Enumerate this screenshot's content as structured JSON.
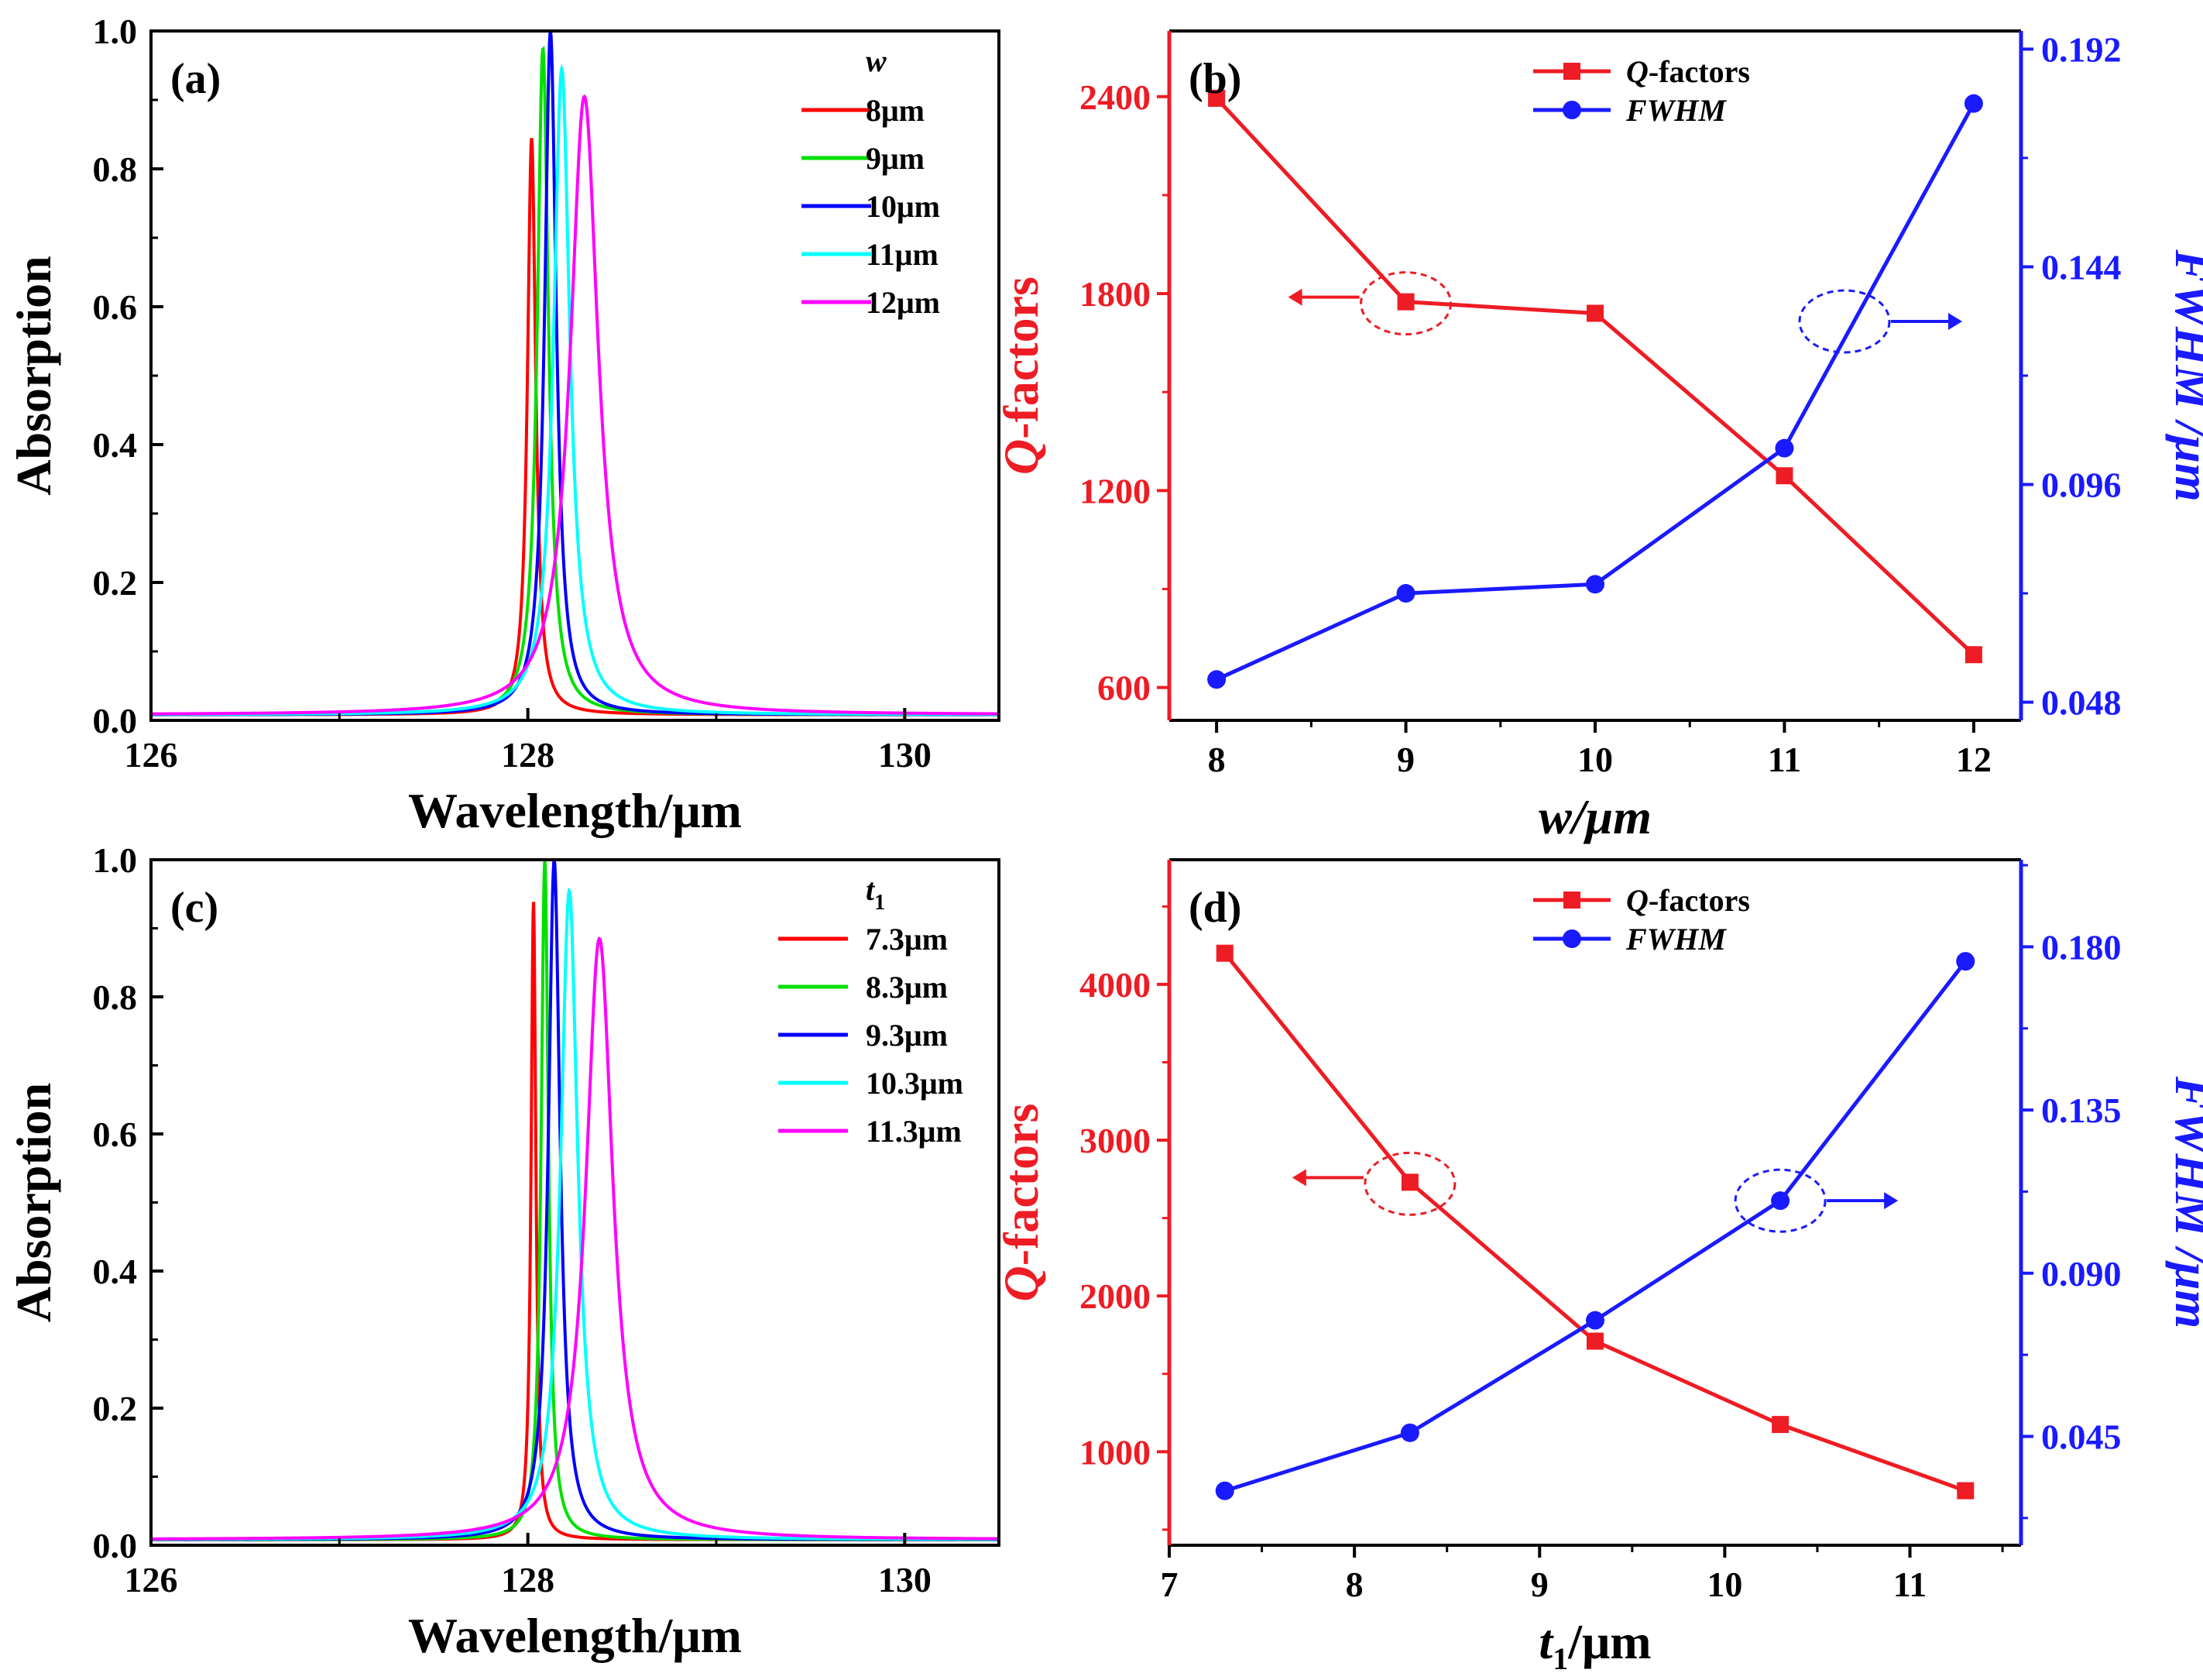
{
  "colors": {
    "red": "#ff0000",
    "green": "#00e000",
    "blue": "#0000ff",
    "cyan": "#00ffff",
    "magenta": "#ff00ff",
    "qred": "#ee1c24",
    "fblue": "#1a1aff"
  },
  "chart_data": [
    {
      "id": "a",
      "type": "line",
      "panel_label": "(a)",
      "xlabel": "Wavelength/μm",
      "ylabel": "Absorption",
      "xlim": [
        126,
        130.5
      ],
      "ylim": [
        0,
        1.0
      ],
      "xticks": [
        126,
        128,
        130
      ],
      "xtick_labels": [
        "126",
        "128",
        "130"
      ],
      "yticks": [
        0,
        0.2,
        0.4,
        0.6,
        0.8,
        1.0
      ],
      "ytick_labels": [
        "0.0",
        "0.2",
        "0.4",
        "0.6",
        "0.8",
        "1.0"
      ],
      "legend_title": "w",
      "series": [
        {
          "name": "8μm",
          "color": "red",
          "peak_x": 128.02,
          "peak_y": 0.845,
          "fwhm": 0.053
        },
        {
          "name": "9μm",
          "color": "green",
          "peak_x": 128.08,
          "peak_y": 0.975,
          "fwhm": 0.072
        },
        {
          "name": "10μm",
          "color": "blue",
          "peak_x": 128.12,
          "peak_y": 1.0,
          "fwhm": 0.075
        },
        {
          "name": "11μm",
          "color": "cyan",
          "peak_x": 128.18,
          "peak_y": 0.945,
          "fwhm": 0.104
        },
        {
          "name": "12μm",
          "color": "magenta",
          "peak_x": 128.3,
          "peak_y": 0.905,
          "fwhm": 0.18
        }
      ]
    },
    {
      "id": "b",
      "type": "line",
      "panel_label": "(b)",
      "xlabel": "w/μm",
      "x": [
        8,
        9,
        10,
        11,
        12
      ],
      "xlim": [
        7.75,
        12.25
      ],
      "xtick_labels": [
        "8",
        "9",
        "10",
        "11",
        "12"
      ],
      "left_axis": {
        "label": "Q-factors",
        "lim": [
          500,
          2600
        ],
        "ticks": [
          600,
          1200,
          1800,
          2400
        ],
        "tick_labels": [
          "600",
          "1200",
          "1800",
          "2400"
        ]
      },
      "right_axis": {
        "label": "FWHM /μm",
        "lim": [
          0.044,
          0.196
        ],
        "ticks": [
          0.048,
          0.096,
          0.144,
          0.192
        ],
        "tick_labels": [
          "0.048",
          "0.096",
          "0.144",
          "0.192"
        ]
      },
      "series": [
        {
          "name": "Q-factors",
          "legend_italic": "Q",
          "legend_rest": "-factors",
          "axis": "left",
          "color": "qred",
          "marker": "square",
          "values": [
            2395,
            1775,
            1740,
            1245,
            700
          ]
        },
        {
          "name": "FWHM",
          "axis": "right",
          "color": "fblue",
          "marker": "circle",
          "values": [
            0.053,
            0.072,
            0.074,
            0.104,
            0.18
          ]
        }
      ]
    },
    {
      "id": "c",
      "type": "line",
      "panel_label": "(c)",
      "xlabel": "Wavelength/μm",
      "ylabel": "Absorption",
      "xlim": [
        126,
        130.5
      ],
      "ylim": [
        0,
        1.0
      ],
      "xticks": [
        126,
        128,
        130
      ],
      "xtick_labels": [
        "126",
        "128",
        "130"
      ],
      "yticks": [
        0,
        0.2,
        0.4,
        0.6,
        0.8,
        1.0
      ],
      "ytick_labels": [
        "0.0",
        "0.2",
        "0.4",
        "0.6",
        "0.8",
        "1.0"
      ],
      "legend_title": "t",
      "legend_title_sub": "1",
      "series": [
        {
          "name": "7.3μm",
          "color": "red",
          "peak_x": 128.03,
          "peak_y": 0.94,
          "fwhm": 0.031
        },
        {
          "name": "8.3μm",
          "color": "green",
          "peak_x": 128.09,
          "peak_y": 1.0,
          "fwhm": 0.047
        },
        {
          "name": "9.3μm",
          "color": "blue",
          "peak_x": 128.14,
          "peak_y": 1.0,
          "fwhm": 0.076
        },
        {
          "name": "10.3μm",
          "color": "cyan",
          "peak_x": 128.22,
          "peak_y": 0.955,
          "fwhm": 0.11
        },
        {
          "name": "11.3μm",
          "color": "magenta",
          "peak_x": 128.38,
          "peak_y": 0.885,
          "fwhm": 0.175
        }
      ]
    },
    {
      "id": "d",
      "type": "line",
      "panel_label": "(d)",
      "xlabel_main": "t",
      "xlabel_sub": "1",
      "xlabel_rest": "/μm",
      "x": [
        7.3,
        8.3,
        9.3,
        10.3,
        11.3
      ],
      "xlim": [
        7,
        11.6
      ],
      "xticks": [
        7,
        8,
        9,
        10,
        11
      ],
      "xtick_labels": [
        "7",
        "8",
        "9",
        "10",
        "11"
      ],
      "left_axis": {
        "label": "Q-factors",
        "lim": [
          400,
          4800
        ],
        "ticks": [
          1000,
          2000,
          3000,
          4000
        ],
        "tick_labels": [
          "1000",
          "2000",
          "3000",
          "4000"
        ]
      },
      "right_axis": {
        "label": "FWHM /μm",
        "lim": [
          0.015,
          0.204
        ],
        "ticks": [
          0.045,
          0.09,
          0.135,
          0.18
        ],
        "tick_labels": [
          "0.045",
          "0.090",
          "0.135",
          "0.180"
        ]
      },
      "series": [
        {
          "name": "Q-factors",
          "legend_italic": "Q",
          "legend_rest": "-factors",
          "axis": "left",
          "color": "qred",
          "marker": "square",
          "values": [
            4200,
            2730,
            1710,
            1175,
            750
          ]
        },
        {
          "name": "FWHM",
          "axis": "right",
          "color": "fblue",
          "marker": "circle",
          "values": [
            0.03,
            0.046,
            0.077,
            0.11,
            0.176
          ]
        }
      ]
    }
  ]
}
